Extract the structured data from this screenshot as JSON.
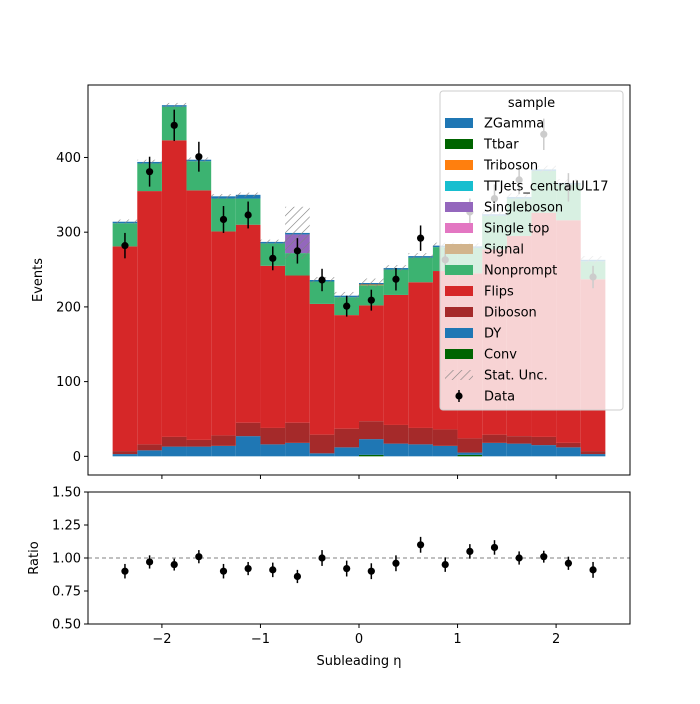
{
  "chart_data": [
    {
      "type": "bar",
      "stacked": true,
      "panel": "main",
      "ylabel": "Events",
      "xlim": [
        -2.75,
        2.75
      ],
      "ylim": [
        -25,
        497
      ],
      "yticks": [
        0,
        100,
        200,
        300,
        400
      ],
      "x": [
        -2.375,
        -2.125,
        -1.875,
        -1.625,
        -1.375,
        -1.125,
        -0.875,
        -0.625,
        -0.375,
        -0.125,
        0.125,
        0.375,
        0.625,
        0.875,
        1.125,
        1.375,
        1.625,
        1.875,
        2.125,
        2.375
      ],
      "bin_edges": [
        -2.5,
        -2.25,
        -2.0,
        -1.75,
        -1.5,
        -1.25,
        -1.0,
        -0.75,
        -0.5,
        -0.25,
        0.0,
        0.25,
        0.5,
        0.75,
        1.0,
        1.25,
        1.5,
        1.75,
        2.0,
        2.25,
        2.5
      ],
      "series": [
        {
          "name": "Conv",
          "color": "#006400",
          "values": [
            0,
            0,
            0,
            0,
            0,
            0,
            0,
            0,
            0,
            0,
            2,
            0,
            0,
            0,
            2,
            0,
            0,
            0,
            0,
            0
          ]
        },
        {
          "name": "DY",
          "color": "#1f77b4",
          "values": [
            3,
            8,
            13,
            13,
            14,
            27,
            16,
            18,
            4,
            12,
            21,
            17,
            16,
            14,
            3,
            18,
            17,
            15,
            12,
            3
          ]
        },
        {
          "name": "Diboson",
          "color": "#a52a2a",
          "values": [
            4,
            8,
            13,
            9,
            14,
            18,
            22,
            27,
            25,
            25,
            24,
            25,
            22,
            22,
            19,
            11,
            10,
            11,
            6,
            4
          ]
        },
        {
          "name": "Flips",
          "color": "#d62728",
          "values": [
            274,
            339,
            397,
            334,
            273,
            265,
            217,
            197,
            175,
            152,
            155,
            174,
            195,
            212,
            221,
            248,
            268,
            300,
            298,
            230
          ]
        },
        {
          "name": "Nonprompt",
          "color": "#3cb371",
          "values": [
            31,
            37,
            45,
            39,
            44,
            35,
            30,
            30,
            30,
            24,
            27,
            34,
            33,
            32,
            34,
            45,
            50,
            56,
            48,
            24
          ]
        },
        {
          "name": "Signal",
          "color": "#d2b48c",
          "values": [
            0,
            0,
            0,
            0,
            0,
            0,
            0,
            0,
            0,
            0,
            0,
            0,
            0,
            0,
            0,
            0,
            0,
            0,
            0,
            0
          ]
        },
        {
          "name": "Single top",
          "color": "#e377c2",
          "values": [
            0,
            0,
            0,
            0,
            0,
            0,
            0,
            0,
            0,
            0,
            0,
            0,
            0,
            0,
            0,
            0,
            0,
            0,
            0,
            0
          ]
        },
        {
          "name": "Singleboson",
          "color": "#9467bd",
          "values": [
            0,
            0,
            0,
            0,
            0,
            0,
            0,
            25,
            0,
            0,
            0,
            0,
            0,
            0,
            0,
            0,
            0,
            0,
            0,
            0
          ]
        },
        {
          "name": "TTJets_centralUL17",
          "color": "#17becf",
          "values": [
            0,
            0,
            0,
            0,
            0,
            0,
            0,
            0,
            0,
            0,
            0,
            0,
            0,
            0,
            0,
            0,
            0,
            0,
            0,
            0
          ]
        },
        {
          "name": "Triboson",
          "color": "#ff7f0e",
          "values": [
            0,
            0,
            0,
            0,
            0,
            0,
            0,
            0,
            0,
            0,
            1,
            0,
            0,
            0,
            0,
            0,
            0,
            0,
            0,
            0
          ]
        },
        {
          "name": "Ttbar",
          "color": "#006400",
          "values": [
            0,
            0,
            0,
            0,
            0,
            0,
            0,
            0,
            0,
            0,
            0,
            0,
            0,
            0,
            0,
            0,
            0,
            0,
            0,
            0
          ]
        },
        {
          "name": "ZGamma",
          "color": "#1f77b4",
          "values": [
            2,
            2,
            2,
            2,
            3,
            5,
            2,
            2,
            2,
            2,
            2,
            2,
            2,
            2,
            2,
            2,
            2,
            2,
            2,
            2
          ]
        }
      ],
      "stat_unc": [
        3,
        3,
        3,
        3,
        3,
        3,
        3,
        35,
        4,
        5,
        6,
        4,
        4,
        4,
        4,
        4,
        5,
        5,
        5,
        5
      ],
      "data": {
        "name": "Data",
        "values": [
          282,
          381,
          443,
          401,
          317,
          323,
          265,
          275,
          236,
          201,
          209,
          237,
          292,
          263,
          327,
          345,
          370,
          431,
          360,
          240
        ],
        "errors": [
          17,
          20,
          21,
          20,
          18,
          18,
          16,
          17,
          15,
          14,
          14,
          15,
          17,
          16,
          18,
          19,
          19,
          21,
          19,
          15
        ]
      },
      "legend": {
        "title": "sample",
        "location": "upper-right",
        "entries": [
          "ZGamma",
          "Ttbar",
          "Triboson",
          "TTJets_centralUL17",
          "Singleboson",
          "Single top",
          "Signal",
          "Nonprompt",
          "Flips",
          "Diboson",
          "DY",
          "Conv",
          "Stat. Unc.",
          "Data"
        ]
      }
    },
    {
      "type": "scatter",
      "panel": "ratio",
      "xlabel": "Subleading η",
      "ylabel": "Ratio",
      "xlim": [
        -2.75,
        2.75
      ],
      "ylim": [
        0.5,
        1.5
      ],
      "yticks": [
        "0.50",
        "0.75",
        "1.00",
        "1.25",
        "1.50"
      ],
      "xticks": [
        "−2",
        "−1",
        "0",
        "1",
        "2"
      ],
      "reference_line": 1.0,
      "x": [
        -2.375,
        -2.125,
        -1.875,
        -1.625,
        -1.375,
        -1.125,
        -0.875,
        -0.625,
        -0.375,
        -0.125,
        0.125,
        0.375,
        0.625,
        0.875,
        1.125,
        1.375,
        1.625,
        1.875,
        2.125,
        2.375
      ],
      "values": [
        0.9,
        0.97,
        0.95,
        1.01,
        0.9,
        0.92,
        0.91,
        0.86,
        1.0,
        0.92,
        0.9,
        0.96,
        1.1,
        0.95,
        1.05,
        1.08,
        1.0,
        1.01,
        0.96,
        0.91
      ],
      "errors": [
        0.055,
        0.05,
        0.045,
        0.05,
        0.055,
        0.05,
        0.055,
        0.05,
        0.06,
        0.06,
        0.06,
        0.06,
        0.06,
        0.055,
        0.055,
        0.055,
        0.05,
        0.045,
        0.05,
        0.06
      ]
    }
  ]
}
